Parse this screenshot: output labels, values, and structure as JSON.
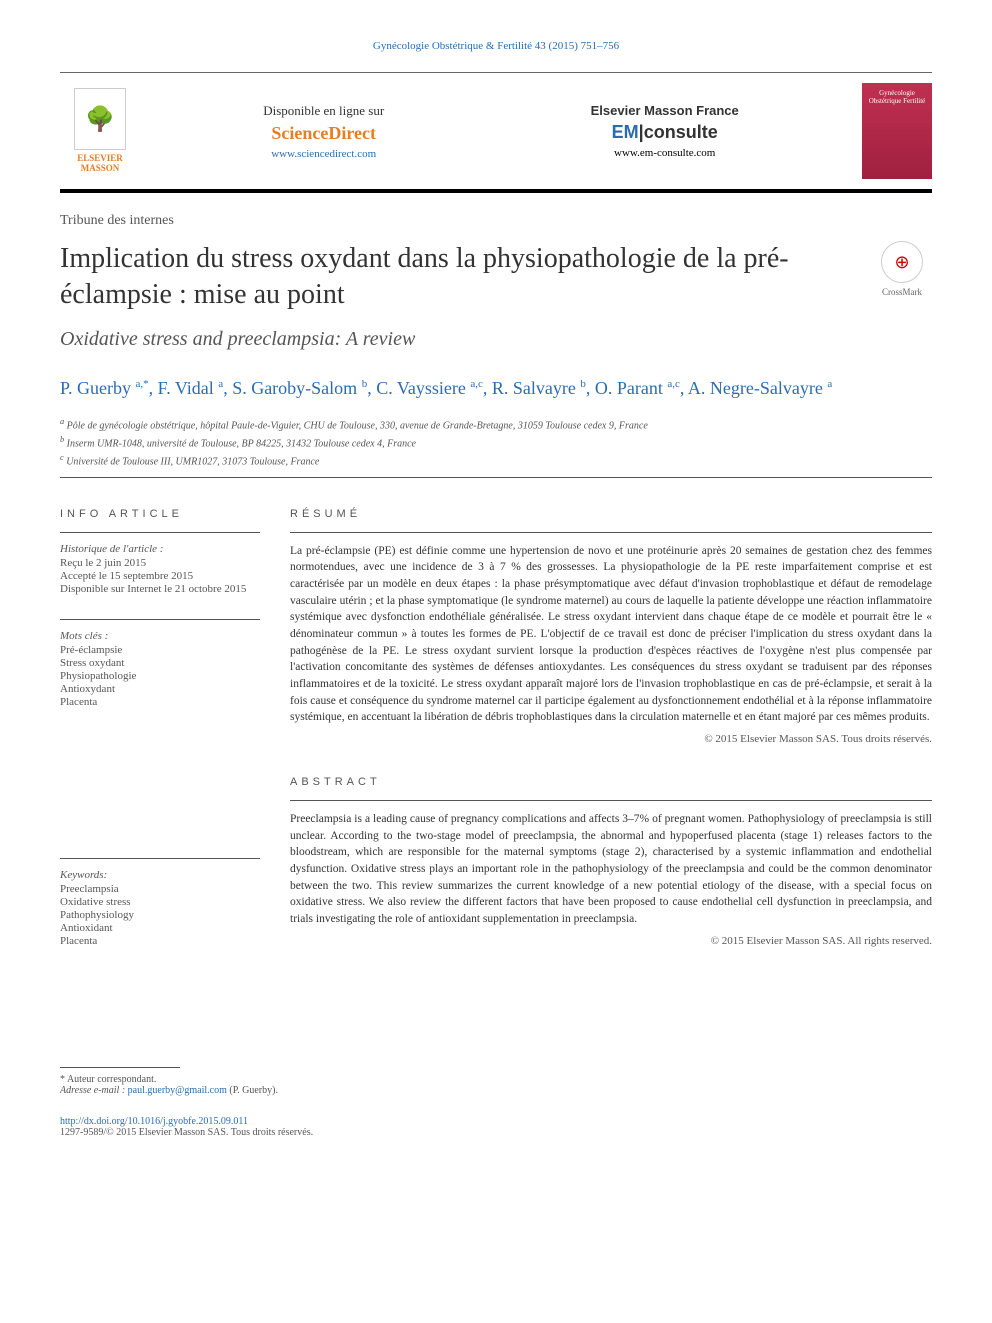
{
  "header": {
    "citation": "Gynécologie Obstétrique & Fertilité 43 (2015) 751–756"
  },
  "banner": {
    "publisher_label": "ELSEVIER MASSON",
    "sciencedirect": {
      "line1": "Disponible en ligne sur",
      "brand": "ScienceDirect",
      "url": "www.sciencedirect.com"
    },
    "emconsulte": {
      "line1": "Elsevier Masson France",
      "brand_em": "EM",
      "brand_consulte": "consulte",
      "url": "www.em-consulte.com"
    },
    "cover_text": "Gynécologie Obstétrique Fertilité"
  },
  "article": {
    "type": "Tribune des internes",
    "title_fr": "Implication du stress oxydant dans la physiopathologie de la pré-éclampsie : mise au point",
    "title_en": "Oxidative stress and preeclampsia: A review",
    "crossmark_label": "CrossMark"
  },
  "authors_html": "P. Guerby <sup>a,*</sup>, F. Vidal <sup>a</sup>, S. Garoby-Salom <sup>b</sup>, C. Vayssiere <sup>a,c</sup>, R. Salvayre <sup>b</sup>, O. Parant <sup>a,c</sup>, A. Negre-Salvayre <sup>a</sup>",
  "affiliations": [
    "a Pôle de gynécologie obstétrique, hôpital Paule-de-Viguier, CHU de Toulouse, 330, avenue de Grande-Bretagne, 31059 Toulouse cedex 9, France",
    "b Inserm UMR-1048, université de Toulouse, BP 84225, 31432 Toulouse cedex 4, France",
    "c Université de Toulouse III, UMR1027, 31073 Toulouse, France"
  ],
  "info": {
    "heading": "INFO ARTICLE",
    "history_title": "Historique de l'article :",
    "received": "Reçu le 2 juin 2015",
    "accepted": "Accepté le 15 septembre 2015",
    "online": "Disponible sur Internet le 21 octobre 2015"
  },
  "keywords_fr": {
    "title": "Mots clés :",
    "items": [
      "Pré-éclampsie",
      "Stress oxydant",
      "Physiopathologie",
      "Antioxydant",
      "Placenta"
    ]
  },
  "keywords_en": {
    "title": "Keywords:",
    "items": [
      "Preeclampsia",
      "Oxidative stress",
      "Pathophysiology",
      "Antioxidant",
      "Placenta"
    ]
  },
  "resume": {
    "heading": "RÉSUMÉ",
    "text": "La pré-éclampsie (PE) est définie comme une hypertension de novo et une protéinurie après 20 semaines de gestation chez des femmes normotendues, avec une incidence de 3 à 7 % des grossesses. La physiopathologie de la PE reste imparfaitement comprise et est caractérisée par un modèle en deux étapes : la phase présymptomatique avec défaut d'invasion trophoblastique et défaut de remodelage vasculaire utérin ; et la phase symptomatique (le syndrome maternel) au cours de laquelle la patiente développe une réaction inflammatoire systémique avec dysfonction endothéliale généralisée. Le stress oxydant intervient dans chaque étape de ce modèle et pourrait être le « dénominateur commun » à toutes les formes de PE. L'objectif de ce travail est donc de préciser l'implication du stress oxydant dans la pathogénèse de la PE. Le stress oxydant survient lorsque la production d'espèces réactives de l'oxygène n'est plus compensée par l'activation concomitante des systèmes de défenses antioxydantes. Les conséquences du stress oxydant se traduisent par des réponses inflammatoires et de la toxicité. Le stress oxydant apparaît majoré lors de l'invasion trophoblastique en cas de pré-éclampsie, et serait à la fois cause et conséquence du syndrome maternel car il participe également au dysfonctionnement endothélial et à la réponse inflammatoire systémique, en accentuant la libération de débris trophoblastiques dans la circulation maternelle et en étant majoré par ces mêmes produits.",
    "copyright": "© 2015 Elsevier Masson SAS. Tous droits réservés."
  },
  "abstract": {
    "heading": "ABSTRACT",
    "text": "Preeclampsia is a leading cause of pregnancy complications and affects 3–7% of pregnant women. Pathophysiology of preeclampsia is still unclear. According to the two-stage model of preeclampsia, the abnormal and hypoperfused placenta (stage 1) releases factors to the bloodstream, which are responsible for the maternal symptoms (stage 2), characterised by a systemic inflammation and endothelial dysfunction. Oxidative stress plays an important role in the pathophysiology of the preeclampsia and could be the common denominator between the two. This review summarizes the current knowledge of a new potential etiology of the disease, with a special focus on oxidative stress. We also review the different factors that have been proposed to cause endothelial cell dysfunction in preeclampsia, and trials investigating the role of antioxidant supplementation in preeclampsia.",
    "copyright": "© 2015 Elsevier Masson SAS. All rights reserved."
  },
  "footer": {
    "corresponding": "* Auteur correspondant.",
    "email_label": "Adresse e-mail :",
    "email": "paul.guerby@gmail.com",
    "email_suffix": "(P. Guerby).",
    "doi": "http://dx.doi.org/10.1016/j.gyobfe.2015.09.011",
    "issn_copyright": "1297-9589/© 2015 Elsevier Masson SAS. Tous droits réservés."
  }
}
